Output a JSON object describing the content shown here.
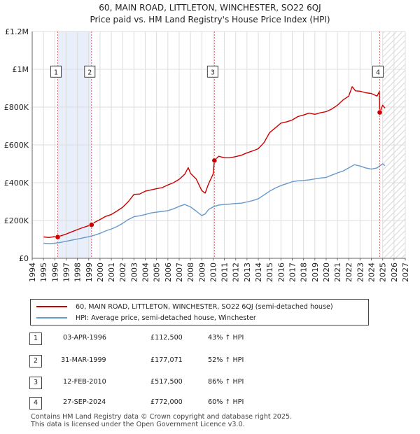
{
  "header": {
    "title": "60, MAIN ROAD, LITTLETON, WINCHESTER, SO22 6QJ",
    "subtitle": "Price paid vs. HM Land Registry's House Price Index (HPI)"
  },
  "colors": {
    "property": "#cc0000",
    "hpi": "#6699cc",
    "shade": "#e8eefa",
    "grid": "#dddddd",
    "marker_line": "#e06666",
    "hatch": "#bbbbbb"
  },
  "legend": {
    "property_label": "60, MAIN ROAD, LITTLETON, WINCHESTER, SO22 6QJ (semi-detached house)",
    "hpi_label": "HPI: Average price, semi-detached house, Winchester"
  },
  "transactions": [
    {
      "num": "1",
      "date": "03-APR-1996",
      "price": "£112,500",
      "hpi_diff": "43% ↑ HPI"
    },
    {
      "num": "2",
      "date": "31-MAR-1999",
      "price": "£177,071",
      "hpi_diff": "52% ↑ HPI"
    },
    {
      "num": "3",
      "date": "12-FEB-2010",
      "price": "£517,500",
      "hpi_diff": "86% ↑ HPI"
    },
    {
      "num": "4",
      "date": "27-SEP-2024",
      "price": "£772,000",
      "hpi_diff": "60% ↑ HPI"
    }
  ],
  "footer": {
    "line1": "Contains HM Land Registry data © Crown copyright and database right 2025.",
    "line2": "This data is licensed under the Open Government Licence v3.0."
  },
  "chart_data": {
    "type": "line",
    "title": "Price paid vs. HM Land Registry's House Price Index (HPI)",
    "xlabel": "",
    "ylabel": "",
    "xlim": [
      1994,
      2027
    ],
    "ylim": [
      0,
      1200000
    ],
    "x_ticks": [
      1994,
      1995,
      1996,
      1997,
      1998,
      1999,
      2000,
      2001,
      2002,
      2003,
      2004,
      2005,
      2006,
      2007,
      2008,
      2009,
      2010,
      2011,
      2012,
      2013,
      2014,
      2015,
      2016,
      2017,
      2018,
      2019,
      2020,
      2021,
      2022,
      2023,
      2024,
      2025,
      2026,
      2027
    ],
    "y_ticks": [
      0,
      200000,
      400000,
      600000,
      800000,
      1000000,
      1200000
    ],
    "y_tick_labels": [
      "£0",
      "£200K",
      "£400K",
      "£600K",
      "£800K",
      "£1M",
      "£1.2M"
    ],
    "shaded_ranges": [
      [
        1996.26,
        1999.25
      ]
    ],
    "hatched_from": 2025.0,
    "sales": [
      {
        "label": "1",
        "x": 1996.26,
        "y": 112500
      },
      {
        "label": "2",
        "x": 1999.25,
        "y": 177071
      },
      {
        "label": "3",
        "x": 2010.12,
        "y": 517500
      },
      {
        "label": "4",
        "x": 2024.74,
        "y": 772000
      }
    ],
    "series": [
      {
        "name": "60, MAIN ROAD, LITTLETON, WINCHESTER, SO22 6QJ (semi-detached house)",
        "x": [
          1995.0,
          1995.5,
          1996.0,
          1996.26,
          1996.5,
          1997.0,
          1997.5,
          1998.0,
          1998.5,
          1999.0,
          1999.25,
          1999.5,
          2000.0,
          2000.5,
          2001.0,
          2001.5,
          2002.0,
          2002.5,
          2003.0,
          2003.5,
          2004.0,
          2004.5,
          2005.0,
          2005.5,
          2006.0,
          2006.5,
          2007.0,
          2007.5,
          2007.8,
          2008.0,
          2008.5,
          2009.0,
          2009.3,
          2009.6,
          2010.0,
          2010.12,
          2010.5,
          2011.0,
          2011.5,
          2012.0,
          2012.5,
          2013.0,
          2013.5,
          2014.0,
          2014.5,
          2015.0,
          2015.5,
          2016.0,
          2016.5,
          2017.0,
          2017.5,
          2018.0,
          2018.5,
          2019.0,
          2019.5,
          2020.0,
          2020.5,
          2021.0,
          2021.5,
          2022.0,
          2022.3,
          2022.6,
          2023.0,
          2023.5,
          2024.0,
          2024.5,
          2024.7,
          2024.74,
          2025.0,
          2025.2
        ],
        "values": [
          113000,
          110000,
          115000,
          112500,
          118000,
          128000,
          140000,
          152000,
          163000,
          173000,
          177071,
          190000,
          205000,
          222000,
          232000,
          250000,
          270000,
          300000,
          338000,
          340000,
          355000,
          362000,
          368000,
          374000,
          388000,
          400000,
          418000,
          445000,
          480000,
          450000,
          420000,
          358000,
          345000,
          395000,
          445000,
          517500,
          540000,
          532000,
          532000,
          538000,
          545000,
          558000,
          568000,
          580000,
          612000,
          665000,
          690000,
          715000,
          722000,
          732000,
          750000,
          758000,
          768000,
          762000,
          770000,
          776000,
          790000,
          810000,
          838000,
          858000,
          908000,
          886000,
          884000,
          876000,
          872000,
          858000,
          882000,
          772000,
          810000,
          795000
        ]
      },
      {
        "name": "HPI: Average price, semi-detached house, Winchester",
        "x": [
          1995.0,
          1995.5,
          1996.0,
          1996.5,
          1997.0,
          1997.5,
          1998.0,
          1998.5,
          1999.0,
          1999.5,
          2000.0,
          2000.5,
          2001.0,
          2001.5,
          2002.0,
          2002.5,
          2003.0,
          2003.5,
          2004.0,
          2004.5,
          2005.0,
          2005.5,
          2006.0,
          2006.5,
          2007.0,
          2007.5,
          2008.0,
          2008.5,
          2009.0,
          2009.3,
          2009.6,
          2010.0,
          2010.5,
          2011.0,
          2011.5,
          2012.0,
          2012.5,
          2013.0,
          2013.5,
          2014.0,
          2014.5,
          2015.0,
          2015.5,
          2016.0,
          2016.5,
          2017.0,
          2017.5,
          2018.0,
          2018.5,
          2019.0,
          2019.5,
          2020.0,
          2020.5,
          2021.0,
          2021.5,
          2022.0,
          2022.5,
          2023.0,
          2023.5,
          2024.0,
          2024.5,
          2025.0,
          2025.2
        ],
        "values": [
          80000,
          78000,
          80000,
          84000,
          90000,
          96000,
          102000,
          108000,
          114000,
          122000,
          132000,
          145000,
          155000,
          168000,
          185000,
          205000,
          220000,
          225000,
          232000,
          240000,
          244000,
          248000,
          252000,
          262000,
          275000,
          285000,
          272000,
          250000,
          226000,
          235000,
          258000,
          272000,
          282000,
          285000,
          287000,
          290000,
          292000,
          298000,
          305000,
          315000,
          335000,
          355000,
          372000,
          385000,
          395000,
          405000,
          410000,
          412000,
          415000,
          420000,
          425000,
          428000,
          440000,
          452000,
          462000,
          478000,
          495000,
          488000,
          478000,
          472000,
          478000,
          500000,
          490000
        ]
      }
    ]
  }
}
